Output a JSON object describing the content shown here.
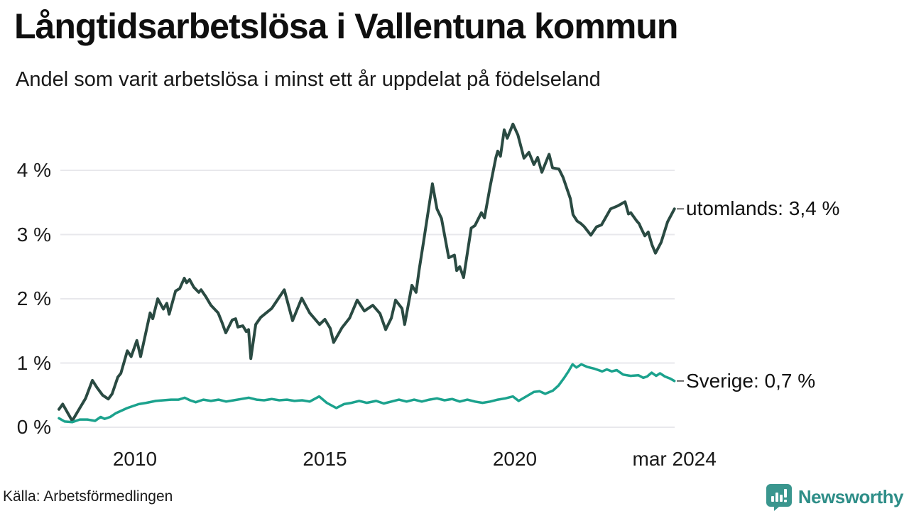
{
  "header": {
    "title": "Långtidsarbetslösa i Vallentuna kommun",
    "subtitle": "Andel som varit arbetslösa i minst ett år uppdelat på födelseland"
  },
  "footer": {
    "source": "Källa: Arbetsförmedlingen",
    "brand": "Newsworthy",
    "brand_color": "#3a968e"
  },
  "chart_data": {
    "type": "line",
    "title": "Långtidsarbetslösa i Vallentuna kommun",
    "subtitle": "Andel som varit arbetslösa i minst ett år uppdelat på födelseland",
    "grid": "horizontal",
    "grid_color": "#e8e8ec",
    "legend_position": "right-end-labels",
    "x_axis": {
      "range": [
        2008.0,
        2024.33
      ],
      "ticks": [
        {
          "value": 2010,
          "label": "2010"
        },
        {
          "value": 2015,
          "label": "2015"
        },
        {
          "value": 2020,
          "label": "2020"
        },
        {
          "value": 2024.2,
          "label": "mar 2024"
        }
      ]
    },
    "y_axis": {
      "range": [
        0,
        4.85
      ],
      "unit": "%",
      "ticks": [
        {
          "value": 0,
          "label": "0 %"
        },
        {
          "value": 1,
          "label": "1 %"
        },
        {
          "value": 2,
          "label": "2 %"
        },
        {
          "value": 3,
          "label": "3 %"
        },
        {
          "value": 4,
          "label": "4 %"
        }
      ]
    },
    "series": [
      {
        "name": "utomlands",
        "label": "utomlands: 3,4 %",
        "end_value": 3.4,
        "color": "#2a4a42",
        "stroke_width": 4,
        "points": [
          [
            2008.0,
            0.28
          ],
          [
            2008.1,
            0.36
          ],
          [
            2008.35,
            0.1
          ],
          [
            2008.55,
            0.3
          ],
          [
            2008.7,
            0.45
          ],
          [
            2008.88,
            0.73
          ],
          [
            2009.0,
            0.62
          ],
          [
            2009.15,
            0.5
          ],
          [
            2009.3,
            0.44
          ],
          [
            2009.4,
            0.52
          ],
          [
            2009.55,
            0.78
          ],
          [
            2009.63,
            0.84
          ],
          [
            2009.8,
            1.19
          ],
          [
            2009.9,
            1.1
          ],
          [
            2010.05,
            1.35
          ],
          [
            2010.15,
            1.1
          ],
          [
            2010.4,
            1.78
          ],
          [
            2010.47,
            1.69
          ],
          [
            2010.6,
            2.0
          ],
          [
            2010.75,
            1.84
          ],
          [
            2010.84,
            1.93
          ],
          [
            2010.9,
            1.76
          ],
          [
            2011.07,
            2.12
          ],
          [
            2011.18,
            2.16
          ],
          [
            2011.3,
            2.32
          ],
          [
            2011.36,
            2.25
          ],
          [
            2011.44,
            2.3
          ],
          [
            2011.55,
            2.18
          ],
          [
            2011.68,
            2.1
          ],
          [
            2011.74,
            2.14
          ],
          [
            2011.87,
            2.03
          ],
          [
            2012.0,
            1.9
          ],
          [
            2012.19,
            1.78
          ],
          [
            2012.3,
            1.62
          ],
          [
            2012.39,
            1.47
          ],
          [
            2012.56,
            1.67
          ],
          [
            2012.65,
            1.69
          ],
          [
            2012.71,
            1.56
          ],
          [
            2012.84,
            1.58
          ],
          [
            2012.93,
            1.49
          ],
          [
            2012.99,
            1.52
          ],
          [
            2013.05,
            1.07
          ],
          [
            2013.18,
            1.6
          ],
          [
            2013.31,
            1.71
          ],
          [
            2013.6,
            1.85
          ],
          [
            2013.93,
            2.14
          ],
          [
            2014.15,
            1.66
          ],
          [
            2014.39,
            2.01
          ],
          [
            2014.6,
            1.78
          ],
          [
            2014.86,
            1.6
          ],
          [
            2015.0,
            1.68
          ],
          [
            2015.14,
            1.54
          ],
          [
            2015.23,
            1.32
          ],
          [
            2015.45,
            1.55
          ],
          [
            2015.65,
            1.7
          ],
          [
            2015.85,
            1.98
          ],
          [
            2016.04,
            1.81
          ],
          [
            2016.26,
            1.9
          ],
          [
            2016.45,
            1.77
          ],
          [
            2016.6,
            1.52
          ],
          [
            2016.75,
            1.7
          ],
          [
            2016.86,
            1.98
          ],
          [
            2017.03,
            1.85
          ],
          [
            2017.1,
            1.6
          ],
          [
            2017.29,
            2.21
          ],
          [
            2017.4,
            2.1
          ],
          [
            2017.48,
            2.45
          ],
          [
            2017.6,
            2.9
          ],
          [
            2017.83,
            3.79
          ],
          [
            2017.95,
            3.4
          ],
          [
            2018.07,
            3.25
          ],
          [
            2018.26,
            2.64
          ],
          [
            2018.41,
            2.68
          ],
          [
            2018.47,
            2.44
          ],
          [
            2018.55,
            2.5
          ],
          [
            2018.65,
            2.33
          ],
          [
            2018.85,
            3.1
          ],
          [
            2018.95,
            3.14
          ],
          [
            2019.12,
            3.34
          ],
          [
            2019.2,
            3.26
          ],
          [
            2019.35,
            3.75
          ],
          [
            2019.5,
            4.2
          ],
          [
            2019.55,
            4.3
          ],
          [
            2019.62,
            4.22
          ],
          [
            2019.72,
            4.63
          ],
          [
            2019.8,
            4.5
          ],
          [
            2019.95,
            4.72
          ],
          [
            2020.08,
            4.55
          ],
          [
            2020.24,
            4.19
          ],
          [
            2020.37,
            4.28
          ],
          [
            2020.5,
            4.09
          ],
          [
            2020.6,
            4.2
          ],
          [
            2020.71,
            3.97
          ],
          [
            2020.9,
            4.25
          ],
          [
            2020.99,
            4.04
          ],
          [
            2021.16,
            4.02
          ],
          [
            2021.27,
            3.89
          ],
          [
            2021.46,
            3.56
          ],
          [
            2021.53,
            3.31
          ],
          [
            2021.64,
            3.21
          ],
          [
            2021.74,
            3.17
          ],
          [
            2021.83,
            3.12
          ],
          [
            2022.0,
            2.99
          ],
          [
            2022.15,
            3.12
          ],
          [
            2022.28,
            3.15
          ],
          [
            2022.52,
            3.4
          ],
          [
            2022.72,
            3.45
          ],
          [
            2022.9,
            3.51
          ],
          [
            2022.99,
            3.32
          ],
          [
            2023.05,
            3.34
          ],
          [
            2023.21,
            3.21
          ],
          [
            2023.27,
            3.17
          ],
          [
            2023.33,
            3.09
          ],
          [
            2023.42,
            2.98
          ],
          [
            2023.51,
            3.04
          ],
          [
            2023.61,
            2.84
          ],
          [
            2023.7,
            2.71
          ],
          [
            2023.85,
            2.88
          ],
          [
            2024.02,
            3.2
          ],
          [
            2024.2,
            3.4
          ]
        ]
      },
      {
        "name": "Sverige",
        "label": "Sverige: 0,7 %",
        "end_value": 0.7,
        "color": "#1ba28d",
        "stroke_width": 3.5,
        "points": [
          [
            2008.0,
            0.14
          ],
          [
            2008.15,
            0.09
          ],
          [
            2008.35,
            0.08
          ],
          [
            2008.55,
            0.12
          ],
          [
            2008.75,
            0.12
          ],
          [
            2008.95,
            0.1
          ],
          [
            2009.1,
            0.16
          ],
          [
            2009.2,
            0.13
          ],
          [
            2009.35,
            0.16
          ],
          [
            2009.5,
            0.22
          ],
          [
            2009.65,
            0.26
          ],
          [
            2009.8,
            0.3
          ],
          [
            2009.95,
            0.33
          ],
          [
            2010.1,
            0.36
          ],
          [
            2010.3,
            0.38
          ],
          [
            2010.55,
            0.41
          ],
          [
            2010.75,
            0.42
          ],
          [
            2010.95,
            0.43
          ],
          [
            2011.15,
            0.43
          ],
          [
            2011.31,
            0.46
          ],
          [
            2011.45,
            0.42
          ],
          [
            2011.6,
            0.39
          ],
          [
            2011.8,
            0.43
          ],
          [
            2012.0,
            0.41
          ],
          [
            2012.2,
            0.43
          ],
          [
            2012.4,
            0.4
          ],
          [
            2012.6,
            0.42
          ],
          [
            2012.8,
            0.44
          ],
          [
            2013.0,
            0.46
          ],
          [
            2013.2,
            0.43
          ],
          [
            2013.4,
            0.42
          ],
          [
            2013.6,
            0.44
          ],
          [
            2013.8,
            0.42
          ],
          [
            2014.0,
            0.43
          ],
          [
            2014.2,
            0.41
          ],
          [
            2014.4,
            0.42
          ],
          [
            2014.6,
            0.4
          ],
          [
            2014.85,
            0.48
          ],
          [
            2015.05,
            0.38
          ],
          [
            2015.3,
            0.3
          ],
          [
            2015.5,
            0.36
          ],
          [
            2015.7,
            0.38
          ],
          [
            2015.9,
            0.41
          ],
          [
            2016.1,
            0.38
          ],
          [
            2016.35,
            0.41
          ],
          [
            2016.55,
            0.37
          ],
          [
            2016.75,
            0.4
          ],
          [
            2016.95,
            0.43
          ],
          [
            2017.15,
            0.4
          ],
          [
            2017.35,
            0.43
          ],
          [
            2017.55,
            0.4
          ],
          [
            2017.75,
            0.43
          ],
          [
            2017.95,
            0.45
          ],
          [
            2018.15,
            0.42
          ],
          [
            2018.35,
            0.44
          ],
          [
            2018.55,
            0.4
          ],
          [
            2018.75,
            0.43
          ],
          [
            2018.95,
            0.4
          ],
          [
            2019.15,
            0.38
          ],
          [
            2019.35,
            0.4
          ],
          [
            2019.55,
            0.43
          ],
          [
            2019.75,
            0.45
          ],
          [
            2019.95,
            0.48
          ],
          [
            2020.1,
            0.41
          ],
          [
            2020.3,
            0.48
          ],
          [
            2020.5,
            0.55
          ],
          [
            2020.65,
            0.56
          ],
          [
            2020.8,
            0.52
          ],
          [
            2021.0,
            0.57
          ],
          [
            2021.15,
            0.65
          ],
          [
            2021.3,
            0.77
          ],
          [
            2021.42,
            0.88
          ],
          [
            2021.52,
            0.98
          ],
          [
            2021.62,
            0.93
          ],
          [
            2021.75,
            0.98
          ],
          [
            2021.9,
            0.94
          ],
          [
            2022.1,
            0.91
          ],
          [
            2022.3,
            0.87
          ],
          [
            2022.42,
            0.9
          ],
          [
            2022.55,
            0.87
          ],
          [
            2022.68,
            0.89
          ],
          [
            2022.85,
            0.82
          ],
          [
            2023.05,
            0.8
          ],
          [
            2023.25,
            0.81
          ],
          [
            2023.38,
            0.77
          ],
          [
            2023.48,
            0.79
          ],
          [
            2023.6,
            0.85
          ],
          [
            2023.72,
            0.8
          ],
          [
            2023.82,
            0.84
          ],
          [
            2023.95,
            0.79
          ],
          [
            2024.08,
            0.76
          ],
          [
            2024.2,
            0.72
          ]
        ]
      }
    ]
  }
}
